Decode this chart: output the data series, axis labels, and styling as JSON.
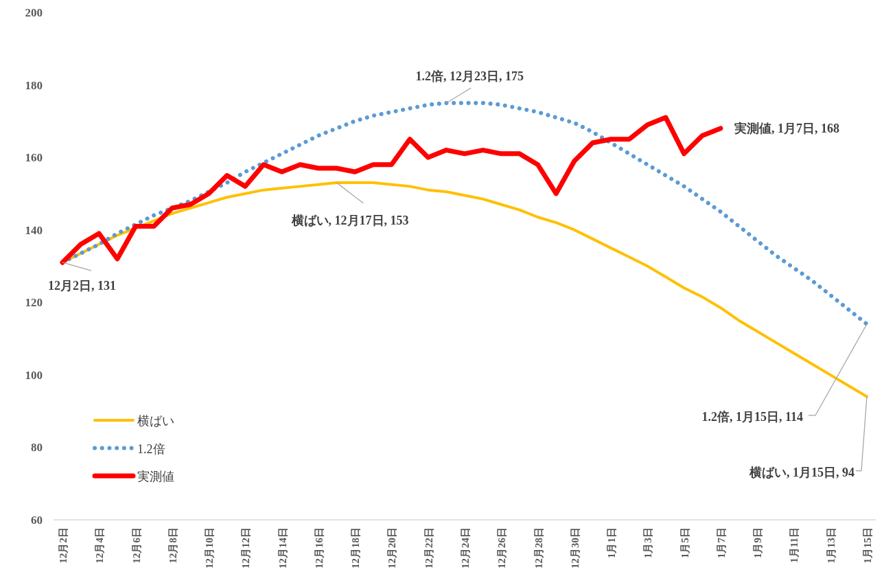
{
  "chart_data": {
    "type": "line",
    "categories": [
      "12月2日",
      null,
      "12月4日",
      null,
      "12月6日",
      null,
      "12月8日",
      null,
      "12月10日",
      null,
      "12月12日",
      null,
      "12月14日",
      null,
      "12月16日",
      null,
      "12月18日",
      null,
      "12月20日",
      null,
      "12月22日",
      null,
      "12月24日",
      null,
      "12月26日",
      null,
      "12月28日",
      null,
      "12月30日",
      null,
      "1月1日",
      null,
      "1月3日",
      null,
      "1月5日",
      null,
      "1月7日",
      null,
      "1月9日",
      null,
      "1月11日",
      null,
      "1月13日",
      null,
      "1月15日"
    ],
    "ylim": [
      60,
      200
    ],
    "yticks": [
      60,
      80,
      100,
      120,
      140,
      160,
      180,
      200
    ],
    "legend": "bottom left",
    "marker": "none",
    "series": [
      {
        "name": "横ばい",
        "color": "#ffc000",
        "line_style": "solid",
        "values": [
          131,
          133.5,
          136,
          138.5,
          140.5,
          142.5,
          144.5,
          146,
          147.5,
          149,
          150,
          151,
          151.5,
          152,
          152.5,
          153,
          153,
          153,
          152.5,
          152,
          151,
          150.5,
          149.5,
          148.5,
          147,
          145.5,
          143.5,
          142,
          140,
          137.5,
          135,
          132.5,
          130,
          127,
          124,
          121.5,
          118.5,
          115,
          112,
          109,
          106,
          103,
          100,
          97,
          94
        ],
        "value_labels": [
          null,
          null,
          null,
          null,
          null,
          null,
          null,
          null,
          null,
          null,
          null,
          null,
          null,
          null,
          null,
          "横ばい, 12月17日, 153",
          null,
          null,
          null,
          null,
          null,
          null,
          null,
          null,
          null,
          null,
          null,
          null,
          null,
          null,
          null,
          null,
          null,
          null,
          null,
          null,
          null,
          null,
          null,
          null,
          null,
          null,
          null,
          null,
          "横ばい, 1月15日, 94"
        ]
      },
      {
        "name": "1.2倍",
        "color": "#5b9bd5",
        "line_style": "dotted",
        "values": [
          131,
          133.5,
          136,
          139,
          141.5,
          144,
          146,
          148,
          150.5,
          153,
          156,
          158.5,
          161,
          163.5,
          166,
          168,
          170,
          171.5,
          172.5,
          173.5,
          174.5,
          175,
          175,
          175,
          174.5,
          173.5,
          172.5,
          171,
          169.5,
          167,
          164,
          161,
          158,
          155,
          152,
          148.5,
          145,
          141,
          137,
          133,
          129.5,
          126,
          122,
          118,
          114
        ],
        "value_labels": [
          null,
          null,
          null,
          null,
          null,
          null,
          null,
          null,
          null,
          null,
          null,
          null,
          null,
          null,
          null,
          null,
          null,
          null,
          null,
          null,
          null,
          "1.2倍, 12月23日, 175",
          null,
          null,
          null,
          null,
          null,
          null,
          null,
          null,
          null,
          null,
          null,
          null,
          null,
          null,
          null,
          null,
          null,
          null,
          null,
          null,
          null,
          null,
          "1.2倍, 1月15日, 114"
        ]
      },
      {
        "name": "実測値",
        "color": "#ff0000",
        "line_style": "solid",
        "values": [
          131,
          136,
          139,
          132,
          141,
          141,
          146,
          147,
          150,
          155,
          152,
          158,
          156,
          158,
          157,
          157,
          156,
          158,
          158,
          165,
          160,
          162,
          161,
          162,
          161,
          161,
          158,
          150,
          159,
          164,
          165,
          165,
          169,
          171,
          161,
          166,
          168,
          null,
          null,
          null,
          null,
          null,
          null,
          null,
          null
        ],
        "value_labels": [
          "12月2日, 131",
          null,
          null,
          null,
          null,
          null,
          null,
          null,
          null,
          null,
          null,
          null,
          null,
          null,
          null,
          null,
          null,
          null,
          null,
          null,
          null,
          null,
          null,
          null,
          null,
          null,
          null,
          null,
          null,
          null,
          null,
          null,
          null,
          null,
          null,
          null,
          "実測値, 1月7日, 168",
          null,
          null,
          null,
          null,
          null,
          null,
          null,
          null
        ]
      }
    ]
  }
}
